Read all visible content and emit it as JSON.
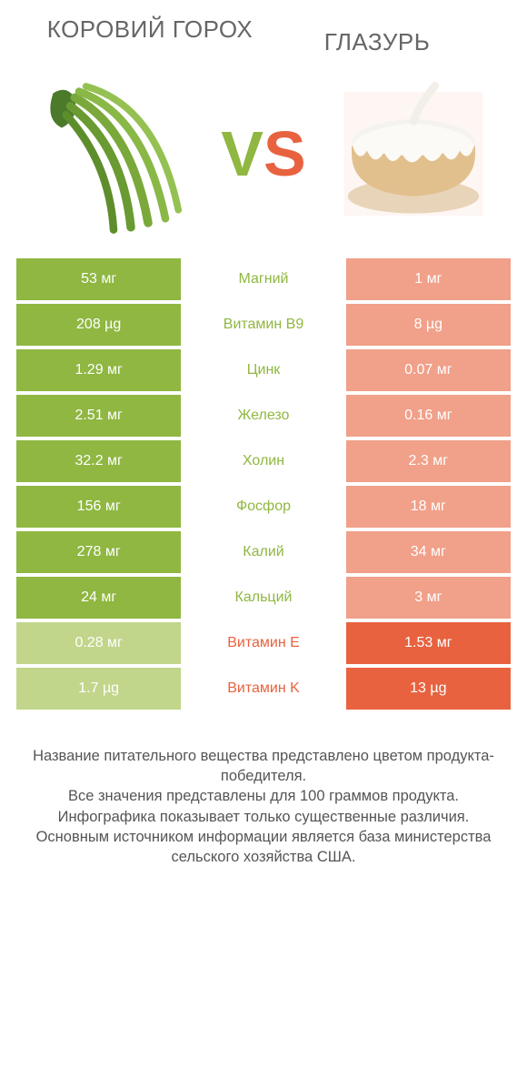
{
  "colors": {
    "left_win": "#8fb741",
    "left_lose": "#c1d68b",
    "right_win": "#e8623f",
    "right_lose": "#f1a089",
    "mid_left_win": "#8fb741",
    "mid_right_win": "#e8623f",
    "text": "#555555",
    "background": "#ffffff"
  },
  "typography": {
    "title_fontsize": 26,
    "cell_fontsize": 16,
    "footer_fontsize": 16.5,
    "vs_fontsize": 70
  },
  "header": {
    "left_title": "КОРОВИЙ ГОРОХ",
    "right_title": "ГЛАЗУРЬ",
    "vs_v": "V",
    "vs_s": "S"
  },
  "images": {
    "left_alt": "green-beans-image",
    "right_alt": "glazed-cake-image"
  },
  "table": {
    "rows": [
      {
        "left": "53 мг",
        "label": "Магний",
        "right": "1 мг",
        "winner": "left"
      },
      {
        "left": "208 µg",
        "label": "Витамин B9",
        "right": "8 µg",
        "winner": "left"
      },
      {
        "left": "1.29 мг",
        "label": "Цинк",
        "right": "0.07 мг",
        "winner": "left"
      },
      {
        "left": "2.51 мг",
        "label": "Железо",
        "right": "0.16 мг",
        "winner": "left"
      },
      {
        "left": "32.2 мг",
        "label": "Холин",
        "right": "2.3 мг",
        "winner": "left"
      },
      {
        "left": "156 мг",
        "label": "Фосфор",
        "right": "18 мг",
        "winner": "left"
      },
      {
        "left": "278 мг",
        "label": "Калий",
        "right": "34 мг",
        "winner": "left"
      },
      {
        "left": "24 мг",
        "label": "Кальций",
        "right": "3 мг",
        "winner": "left"
      },
      {
        "left": "0.28 мг",
        "label": "Витамин E",
        "right": "1.53 мг",
        "winner": "right"
      },
      {
        "left": "1.7 µg",
        "label": "Витамин K",
        "right": "13 µg",
        "winner": "right"
      }
    ]
  },
  "footer": {
    "line1": "Название питательного вещества представлено цветом продукта-победителя.",
    "line2": "Все значения представлены для 100 граммов продукта.",
    "line3": "Инфографика показывает только существенные различия.",
    "line4": "Основным источником информации является база министерства сельского хозяйства США."
  }
}
